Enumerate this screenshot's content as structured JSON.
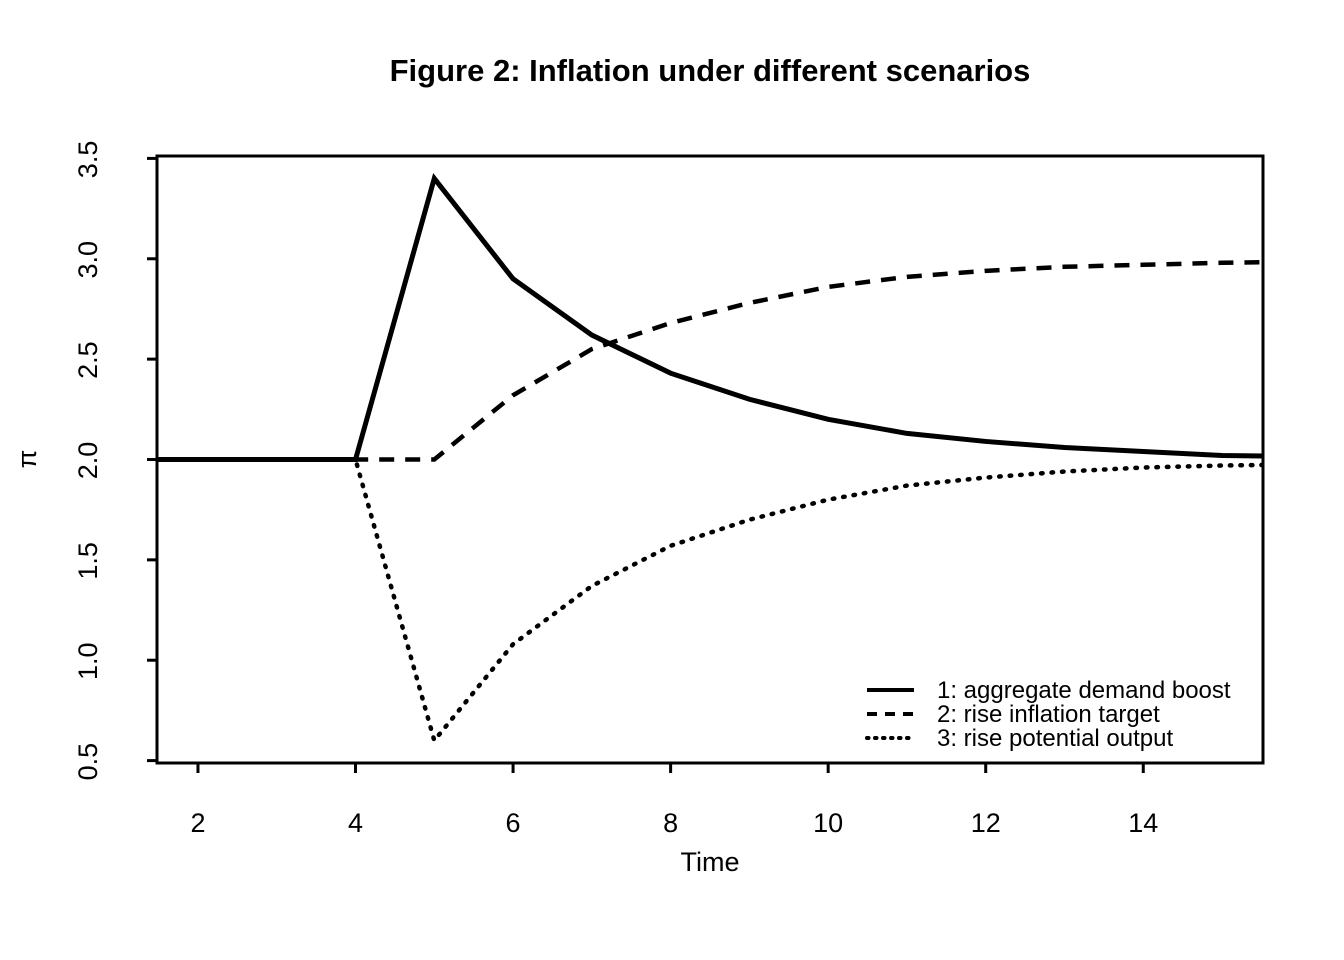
{
  "figure": {
    "background": "#ffffff",
    "line_color": "#000000"
  },
  "chart_data": {
    "type": "line",
    "title": "Figure 2: Inflation under different scenarios",
    "xlabel": "Time",
    "ylabel": "π",
    "grid": false,
    "legend_position": "bottomright",
    "xlim": [
      1.48,
      15.52
    ],
    "ylim": [
      0.488,
      3.512
    ],
    "xticks": [
      2,
      4,
      6,
      8,
      10,
      12,
      14
    ],
    "yticks": [
      "0.5",
      "1.0",
      "1.5",
      "2.0",
      "2.5",
      "3.0",
      "3.5"
    ],
    "x": [
      1,
      2,
      3,
      4,
      5,
      6,
      7,
      8,
      9,
      10,
      11,
      12,
      13,
      14,
      15,
      16
    ],
    "series": [
      {
        "name": "1: aggregate demand boost",
        "line_style": "solid",
        "color": "#000000",
        "values": [
          2,
          2,
          2,
          2,
          3.4,
          2.9,
          2.62,
          2.43,
          2.3,
          2.2,
          2.13,
          2.09,
          2.06,
          2.04,
          2.02,
          2.015
        ]
      },
      {
        "name": "2: rise inflation target",
        "line_style": "dashed",
        "color": "#000000",
        "values": [
          2,
          2,
          2,
          2,
          2,
          2.32,
          2.55,
          2.68,
          2.78,
          2.86,
          2.91,
          2.94,
          2.96,
          2.97,
          2.98,
          2.985
        ]
      },
      {
        "name": "3: rise potential output",
        "line_style": "dotted",
        "color": "#000000",
        "values": [
          2,
          2,
          2,
          2,
          0.6,
          1.08,
          1.37,
          1.57,
          1.7,
          1.8,
          1.87,
          1.91,
          1.94,
          1.96,
          1.97,
          1.975
        ]
      }
    ]
  }
}
